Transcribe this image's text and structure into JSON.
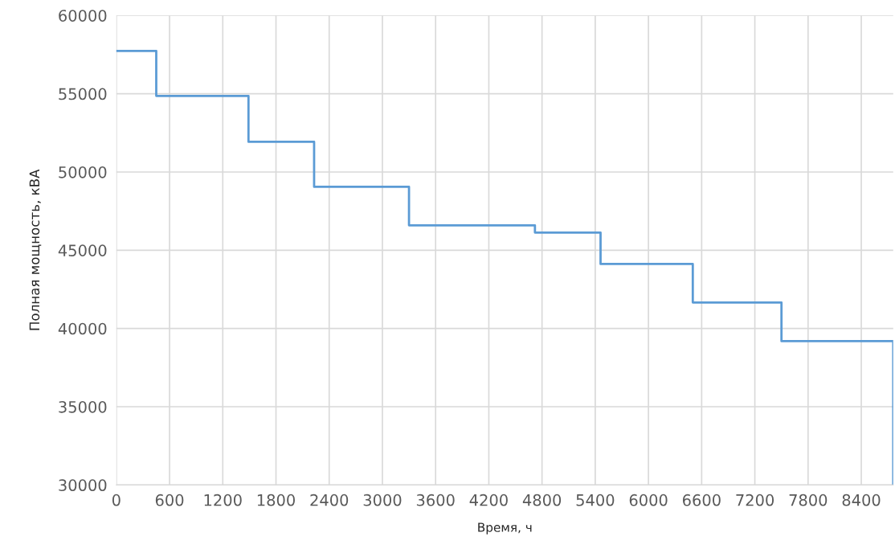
{
  "chart_data": {
    "type": "step",
    "xlabel": "Время, ч",
    "ylabel": "Полная мощность, кВА",
    "x": [
      0,
      450,
      1490,
      2230,
      3300,
      4720,
      5460,
      6500,
      7500,
      8760,
      8760
    ],
    "series": [
      {
        "color": "#5b9bd5",
        "values": [
          57740,
          54860,
          51930,
          49050,
          46590,
          46130,
          44120,
          41660,
          39190,
          39190,
          30000
        ]
      }
    ],
    "xlim": [
      0,
      8760
    ],
    "xticks": [
      0,
      600,
      1200,
      1800,
      2400,
      3000,
      3600,
      4200,
      4800,
      5400,
      6000,
      6600,
      7200,
      7800,
      8400
    ],
    "ylim": [
      30000,
      60000
    ],
    "yticks": [
      30000,
      35000,
      40000,
      45000,
      50000,
      55000,
      60000
    ],
    "grid": true,
    "legend": false
  }
}
